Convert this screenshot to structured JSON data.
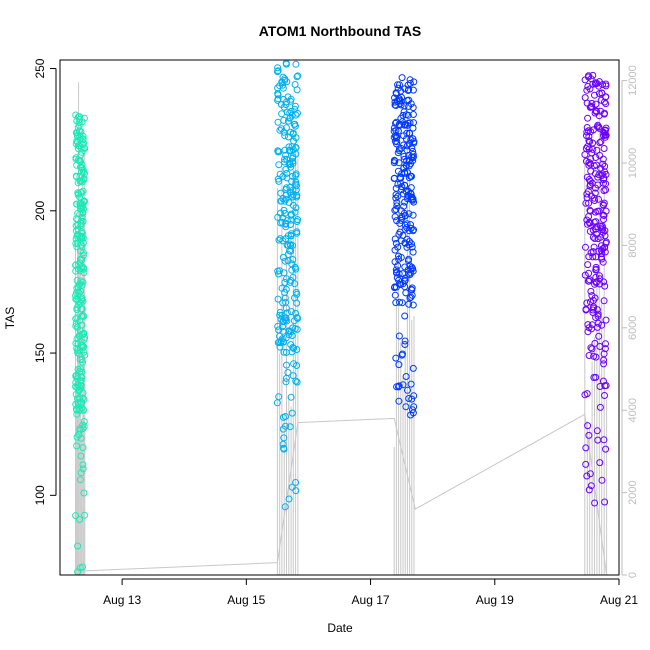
{
  "chart_data": {
    "type": "scatter",
    "title": "ATOM1 Northbound TAS",
    "xlabel": "Date",
    "ylabel": "TAS",
    "x_ticks": [
      "Aug 13",
      "Aug 15",
      "Aug 17",
      "Aug 19",
      "Aug 21"
    ],
    "y_left_ticks": [
      100,
      150,
      200,
      250
    ],
    "y_right_ticks": [
      0,
      2000,
      4000,
      6000,
      8000,
      10000,
      12000
    ],
    "x_range_days": [
      12.0,
      21.0
    ],
    "y_left_range": [
      72,
      253
    ],
    "y_right_range": [
      0,
      12500
    ],
    "grid": false,
    "legend": "none",
    "series": [
      {
        "role": "TAS points (left axis)",
        "flights": [
          {
            "date": "Aug 12",
            "x_start": 12.25,
            "x_end": 12.4,
            "tas_min": 73,
            "tas_max": 234,
            "color": "#1de9b6"
          },
          {
            "date": "Aug 15",
            "x_start": 15.5,
            "x_end": 15.83,
            "tas_min": 95,
            "tas_max": 252,
            "color": "#00b0f0"
          },
          {
            "date": "Aug 17",
            "x_start": 17.38,
            "x_end": 17.7,
            "tas_min": 128,
            "tas_max": 247,
            "color": "#0039ff"
          },
          {
            "date": "Aug 20",
            "x_start": 20.45,
            "x_end": 20.8,
            "tas_min": 97,
            "tas_max": 248,
            "color": "#6a00ff"
          }
        ]
      },
      {
        "role": "Altitude trace (right axis)",
        "color": "#c8c8c8",
        "points": [
          {
            "x": 12.25,
            "alt": 100
          },
          {
            "x": 12.4,
            "alt": 100
          },
          {
            "x": 15.5,
            "alt": 300
          },
          {
            "x": 15.83,
            "alt": 3700
          },
          {
            "x": 17.38,
            "alt": 3800
          },
          {
            "x": 17.72,
            "alt": 1600
          },
          {
            "x": 20.45,
            "alt": 3900
          },
          {
            "x": 20.8,
            "alt": 0
          }
        ]
      }
    ]
  }
}
